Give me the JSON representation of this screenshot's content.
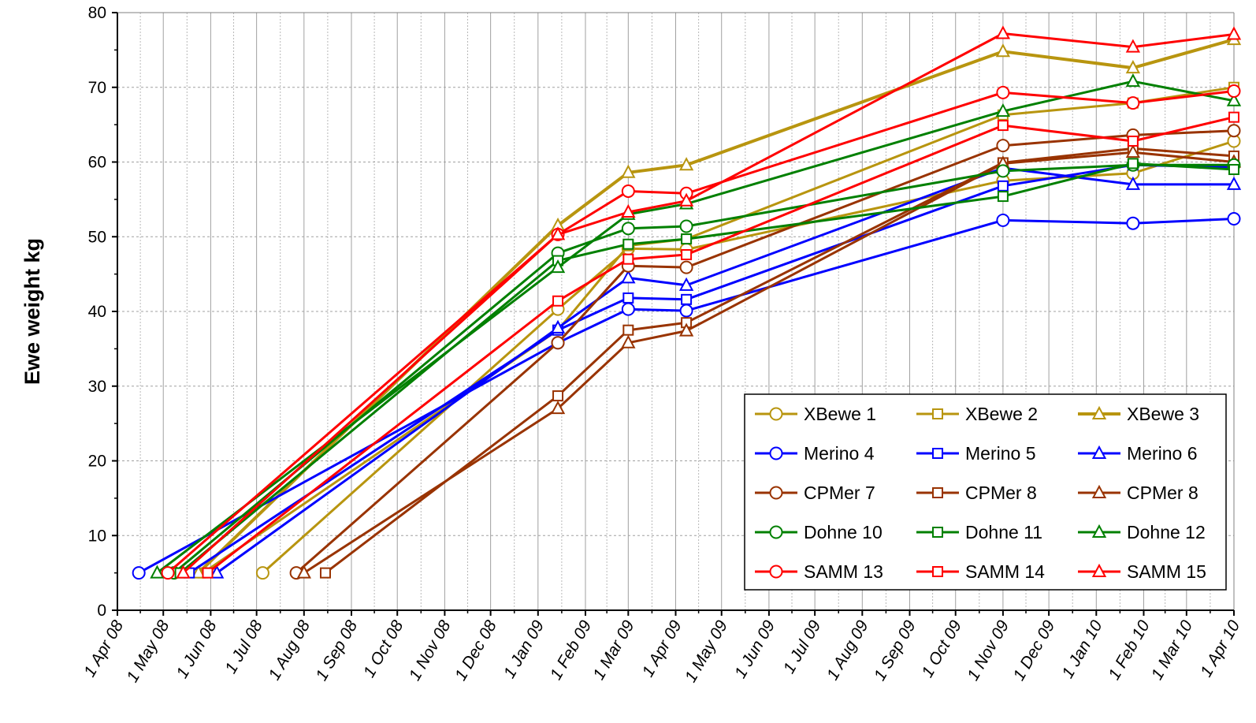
{
  "chart_data": {
    "type": "line",
    "title": "",
    "xlabel": "",
    "ylabel": "Ewe weight kg",
    "ylim": [
      0,
      80
    ],
    "yticks": [
      "0",
      "10",
      "20",
      "30",
      "40",
      "50",
      "60",
      "70",
      "80"
    ],
    "xlim": [
      "2008-04-01",
      "2010-04-01"
    ],
    "xticks": [
      {
        "date": "2008-04-01",
        "label": "1 Apr 08"
      },
      {
        "date": "2008-05-01",
        "label": "1 May 08"
      },
      {
        "date": "2008-06-01",
        "label": "1 Jun 08"
      },
      {
        "date": "2008-07-01",
        "label": "1 Jul 08"
      },
      {
        "date": "2008-08-01",
        "label": "1 Aug 08"
      },
      {
        "date": "2008-09-01",
        "label": "1 Sep 08"
      },
      {
        "date": "2008-10-01",
        "label": "1 Oct 08"
      },
      {
        "date": "2008-11-01",
        "label": "1 Nov 08"
      },
      {
        "date": "2008-12-01",
        "label": "1 Dec 08"
      },
      {
        "date": "2009-01-01",
        "label": "1 Jan 09"
      },
      {
        "date": "2009-02-01",
        "label": "1 Feb 09"
      },
      {
        "date": "2009-03-01",
        "label": "1 Mar 09"
      },
      {
        "date": "2009-04-01",
        "label": "1 Apr 09"
      },
      {
        "date": "2009-05-01",
        "label": "1 May 09"
      },
      {
        "date": "2009-06-01",
        "label": "1 Jun 09"
      },
      {
        "date": "2009-07-01",
        "label": "1 Jul 09"
      },
      {
        "date": "2009-08-01",
        "label": "1 Aug 09"
      },
      {
        "date": "2009-09-01",
        "label": "1 Sep 09"
      },
      {
        "date": "2009-10-01",
        "label": "1 Oct 09"
      },
      {
        "date": "2009-11-01",
        "label": "1 Nov 09"
      },
      {
        "date": "2009-12-01",
        "label": "1 Dec 09"
      },
      {
        "date": "2010-01-01",
        "label": "1 Jan 10"
      },
      {
        "date": "2010-02-01",
        "label": "1 Feb 10"
      },
      {
        "date": "2010-03-01",
        "label": "1 Mar 10"
      },
      {
        "date": "2010-04-01",
        "label": "1 Apr 10"
      }
    ],
    "grid": true,
    "legend_position": "bottom-right",
    "series": [
      {
        "name": "XBewe 1",
        "color": "#b8950f",
        "marker": "circle",
        "width": 3,
        "points": [
          [
            "2008-07-05",
            5
          ],
          [
            "2009-01-14",
            40.3
          ],
          [
            "2009-03-01",
            48.4
          ],
          [
            "2009-04-08",
            48.3
          ],
          [
            "2009-11-01",
            57.5
          ],
          [
            "2010-01-25",
            58.5
          ],
          [
            "2010-04-01",
            62.8
          ]
        ]
      },
      {
        "name": "XBewe 2",
        "color": "#b8950f",
        "marker": "square",
        "width": 3,
        "points": [
          [
            "2008-05-27",
            5
          ],
          [
            "2009-01-14",
            37.5
          ],
          [
            "2009-03-01",
            48.8
          ],
          [
            "2009-04-08",
            49.7
          ],
          [
            "2009-11-01",
            66.3
          ],
          [
            "2010-01-25",
            67.9
          ],
          [
            "2010-04-01",
            70
          ]
        ]
      },
      {
        "name": "XBewe 3",
        "color": "#b8950f",
        "marker": "triangle",
        "width": 4,
        "points": [
          [
            "2008-05-24",
            5
          ],
          [
            "2009-01-14",
            51.5
          ],
          [
            "2009-03-01",
            58.6
          ],
          [
            "2009-04-08",
            59.6
          ],
          [
            "2009-11-01",
            74.8
          ],
          [
            "2010-01-25",
            72.6
          ],
          [
            "2010-04-01",
            76.4
          ]
        ]
      },
      {
        "name": "Merino 4",
        "color": "#0000ff",
        "marker": "circle",
        "width": 3,
        "points": [
          [
            "2008-04-15",
            5
          ],
          [
            "2009-01-14",
            35.8
          ],
          [
            "2009-03-01",
            40.3
          ],
          [
            "2009-04-08",
            40.1
          ],
          [
            "2009-11-01",
            52.2
          ],
          [
            "2010-01-25",
            51.8
          ],
          [
            "2010-04-01",
            52.4
          ]
        ]
      },
      {
        "name": "Merino 5",
        "color": "#0000ff",
        "marker": "square",
        "width": 3,
        "points": [
          [
            "2008-05-18",
            5
          ],
          [
            "2009-01-14",
            37.5
          ],
          [
            "2009-03-01",
            41.8
          ],
          [
            "2009-04-08",
            41.6
          ],
          [
            "2009-11-01",
            56.8
          ],
          [
            "2010-01-25",
            59.6
          ],
          [
            "2010-04-01",
            59.3
          ]
        ]
      },
      {
        "name": "Merino 6",
        "color": "#0000ff",
        "marker": "triangle",
        "width": 3,
        "points": [
          [
            "2008-06-05",
            5
          ],
          [
            "2009-01-14",
            37.8
          ],
          [
            "2009-03-01",
            44.5
          ],
          [
            "2009-04-08",
            43.5
          ],
          [
            "2009-11-01",
            59.2
          ],
          [
            "2010-01-25",
            57
          ],
          [
            "2010-04-01",
            57
          ]
        ]
      },
      {
        "name": "CPMer 7",
        "color": "#993300",
        "marker": "circle",
        "width": 3,
        "points": [
          [
            "2008-07-27",
            5
          ],
          [
            "2009-01-14",
            35.8
          ],
          [
            "2009-03-01",
            46.1
          ],
          [
            "2009-04-08",
            45.9
          ],
          [
            "2009-11-01",
            62.2
          ],
          [
            "2010-01-25",
            63.6
          ],
          [
            "2010-04-01",
            64.2
          ]
        ]
      },
      {
        "name": "CPMer 8",
        "color": "#993300",
        "marker": "square",
        "width": 3,
        "points": [
          [
            "2008-08-15",
            5
          ],
          [
            "2009-01-14",
            28.7
          ],
          [
            "2009-03-01",
            37.5
          ],
          [
            "2009-04-08",
            38.5
          ],
          [
            "2009-11-01",
            59.9
          ],
          [
            "2010-01-25",
            61.8
          ],
          [
            "2010-04-01",
            60.8
          ]
        ]
      },
      {
        "name": "CPMer 8",
        "color": "#993300",
        "marker": "triangle",
        "width": 3,
        "points": [
          [
            "2008-08-01",
            5
          ],
          [
            "2009-01-14",
            27
          ],
          [
            "2009-03-01",
            35.8
          ],
          [
            "2009-04-08",
            37.4
          ],
          [
            "2009-11-01",
            59.8
          ],
          [
            "2010-01-25",
            61.3
          ],
          [
            "2010-04-01",
            60
          ]
        ]
      },
      {
        "name": "Dohne 10",
        "color": "#008000",
        "marker": "circle",
        "width": 3,
        "points": [
          [
            "2008-05-08",
            5
          ],
          [
            "2009-01-14",
            47.8
          ],
          [
            "2009-03-01",
            51.1
          ],
          [
            "2009-04-08",
            51.4
          ],
          [
            "2009-11-01",
            58.8
          ],
          [
            "2010-01-25",
            59.6
          ],
          [
            "2010-04-01",
            59.6
          ]
        ]
      },
      {
        "name": "Dohne 11",
        "color": "#008000",
        "marker": "square",
        "width": 3,
        "points": [
          [
            "2008-05-12",
            5
          ],
          [
            "2009-01-14",
            46.8
          ],
          [
            "2009-03-01",
            49
          ],
          [
            "2009-04-08",
            49.7
          ],
          [
            "2009-11-01",
            55.4
          ],
          [
            "2010-01-25",
            59.8
          ],
          [
            "2010-04-01",
            59
          ]
        ]
      },
      {
        "name": "Dohne 12",
        "color": "#008000",
        "marker": "triangle",
        "width": 3,
        "points": [
          [
            "2008-04-27",
            5
          ],
          [
            "2009-01-14",
            45.9
          ],
          [
            "2009-03-01",
            53
          ],
          [
            "2009-04-08",
            54.4
          ],
          [
            "2009-11-01",
            66.8
          ],
          [
            "2010-01-25",
            70.8
          ],
          [
            "2010-04-01",
            68.2
          ]
        ]
      },
      {
        "name": "SAMM 13",
        "color": "#ff0000",
        "marker": "circle",
        "width": 3,
        "points": [
          [
            "2008-05-04",
            5
          ],
          [
            "2009-01-14",
            50.3
          ],
          [
            "2009-03-01",
            56.1
          ],
          [
            "2009-04-08",
            55.8
          ],
          [
            "2009-11-01",
            69.3
          ],
          [
            "2010-01-25",
            67.9
          ],
          [
            "2010-04-01",
            69.5
          ]
        ]
      },
      {
        "name": "SAMM 14",
        "color": "#ff0000",
        "marker": "square",
        "width": 3,
        "points": [
          [
            "2008-05-30",
            5
          ],
          [
            "2009-01-14",
            41.4
          ],
          [
            "2009-03-01",
            47
          ],
          [
            "2009-04-08",
            47.6
          ],
          [
            "2009-11-01",
            64.9
          ],
          [
            "2010-01-25",
            62.8
          ],
          [
            "2010-04-01",
            66
          ]
        ]
      },
      {
        "name": "SAMM 15",
        "color": "#ff0000",
        "marker": "triangle",
        "width": 3,
        "points": [
          [
            "2008-05-14",
            5
          ],
          [
            "2009-01-14",
            50.3
          ],
          [
            "2009-03-01",
            53.3
          ],
          [
            "2009-04-08",
            54.8
          ],
          [
            "2009-11-01",
            77.2
          ],
          [
            "2010-01-25",
            75.4
          ],
          [
            "2010-04-01",
            77.1
          ]
        ]
      }
    ]
  }
}
